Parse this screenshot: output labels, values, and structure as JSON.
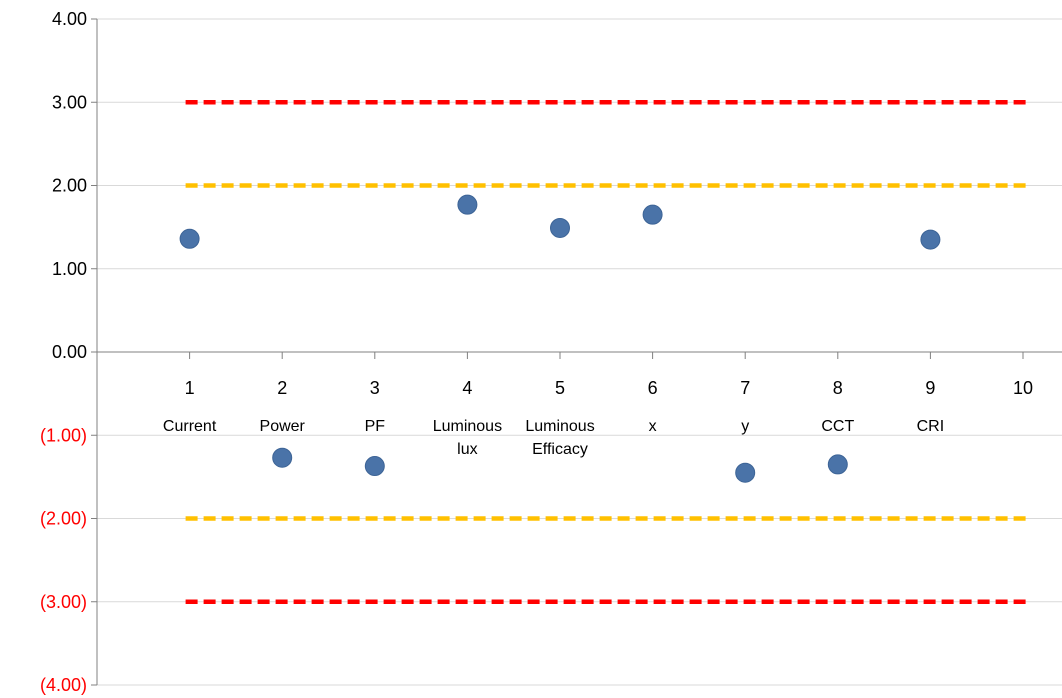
{
  "chart_data": {
    "type": "scatter",
    "title": "",
    "xlabel": "",
    "ylabel": "",
    "ylim": [
      -4,
      4
    ],
    "xlim": [
      0,
      10
    ],
    "grid": true,
    "y_ticks": [
      {
        "value": 4,
        "label": "4.00",
        "negative": false
      },
      {
        "value": 3,
        "label": "3.00",
        "negative": false
      },
      {
        "value": 2,
        "label": "2.00",
        "negative": false
      },
      {
        "value": 1,
        "label": "1.00",
        "negative": false
      },
      {
        "value": 0,
        "label": "0.00",
        "negative": false
      },
      {
        "value": -1,
        "label": "(1.00)",
        "negative": true
      },
      {
        "value": -2,
        "label": "(2.00)",
        "negative": true
      },
      {
        "value": -3,
        "label": "(3.00)",
        "negative": true
      },
      {
        "value": -4,
        "label": "(4.00)",
        "negative": true
      }
    ],
    "x_ticks": [
      "1",
      "2",
      "3",
      "4",
      "5",
      "6",
      "7",
      "8",
      "9",
      "10"
    ],
    "category_labels": [
      {
        "x": 1,
        "lines": [
          "Current"
        ]
      },
      {
        "x": 2,
        "lines": [
          "Power"
        ]
      },
      {
        "x": 3,
        "lines": [
          "PF"
        ]
      },
      {
        "x": 4,
        "lines": [
          "Luminous",
          "lux"
        ]
      },
      {
        "x": 5,
        "lines": [
          "Luminous",
          "Efficacy"
        ]
      },
      {
        "x": 6,
        "lines": [
          "x"
        ]
      },
      {
        "x": 7,
        "lines": [
          "y"
        ]
      },
      {
        "x": 8,
        "lines": [
          "CCT"
        ]
      },
      {
        "x": 9,
        "lines": [
          "CRI"
        ]
      }
    ],
    "points": [
      {
        "x": 1,
        "y": 1.36
      },
      {
        "x": 2,
        "y": -1.27
      },
      {
        "x": 3,
        "y": -1.37
      },
      {
        "x": 4,
        "y": 1.77
      },
      {
        "x": 5,
        "y": 1.49
      },
      {
        "x": 6,
        "y": 1.65
      },
      {
        "x": 7,
        "y": -1.45
      },
      {
        "x": 8,
        "y": -1.35
      },
      {
        "x": 9,
        "y": 1.35
      }
    ],
    "reference_lines": [
      {
        "y": 3,
        "x_from": 1,
        "x_to": 10,
        "color": "#ff0000"
      },
      {
        "y": 2,
        "x_from": 1,
        "x_to": 10,
        "color": "#ffc000"
      },
      {
        "y": -2,
        "x_from": 1,
        "x_to": 10,
        "color": "#ffc000"
      },
      {
        "y": -3,
        "x_from": 1,
        "x_to": 10,
        "color": "#ff0000"
      }
    ],
    "colors": {
      "point": "#4a73a8",
      "point_stroke": "#3d6496",
      "negative_label": "#ff0000",
      "positive_label": "#000000",
      "grid": "#d9d9d9",
      "axis": "#808080"
    }
  }
}
